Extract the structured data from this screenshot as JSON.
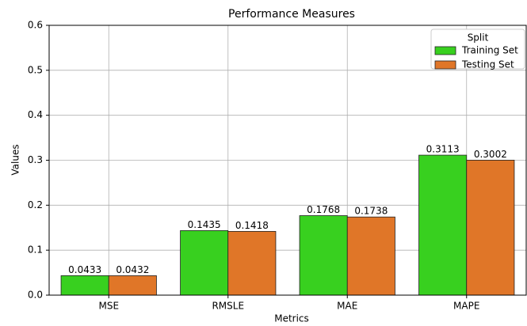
{
  "chart_data": {
    "type": "bar",
    "title": "Performance Measures",
    "x_label": "Metrics",
    "y_label": "Values",
    "categories": [
      "MSE",
      "RMSLE",
      "MAE",
      "MAPE"
    ],
    "series": [
      {
        "name": "Training Set",
        "color": "#38d01f",
        "values": [
          0.0433,
          0.1435,
          0.1768,
          0.3113
        ]
      },
      {
        "name": "Testing Set",
        "color": "#e07628",
        "values": [
          0.0432,
          0.1418,
          0.1738,
          0.3002
        ]
      }
    ],
    "legend_title": "Split",
    "legend_position": "upper right",
    "ylim": [
      0,
      0.6
    ],
    "yticks": [
      {
        "value": 0,
        "label": "0.0"
      },
      0.1,
      0.2,
      0.3,
      0.4,
      0.5,
      0.6
    ],
    "grid": true
  }
}
